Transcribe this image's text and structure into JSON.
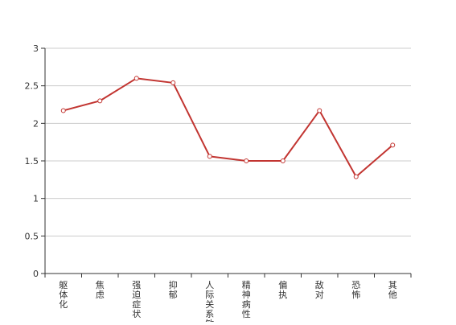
{
  "chart_data": {
    "type": "line",
    "title": "",
    "xlabel": "",
    "ylabel": "",
    "categories": [
      "躯体化",
      "焦虑",
      "强迫症状",
      "抑郁",
      "人际关系敏感",
      "精神病性",
      "偏执",
      "敌对",
      "恐怖",
      "其他"
    ],
    "series": [
      {
        "values": [
          2.17,
          2.3,
          2.6,
          2.54,
          1.56,
          1.5,
          1.5,
          2.17,
          1.29,
          1.71
        ]
      }
    ],
    "ylim": [
      0,
      3
    ],
    "yticks": [
      "0",
      "0.5",
      "1",
      "1.5",
      "2",
      "2.5",
      "3"
    ],
    "ytick_values": [
      0,
      0.5,
      1,
      1.5,
      2,
      2.5,
      3
    ],
    "grid": true,
    "colors": {
      "line": "#c23531",
      "grid": "#cccccc",
      "axis": "#333333"
    }
  }
}
